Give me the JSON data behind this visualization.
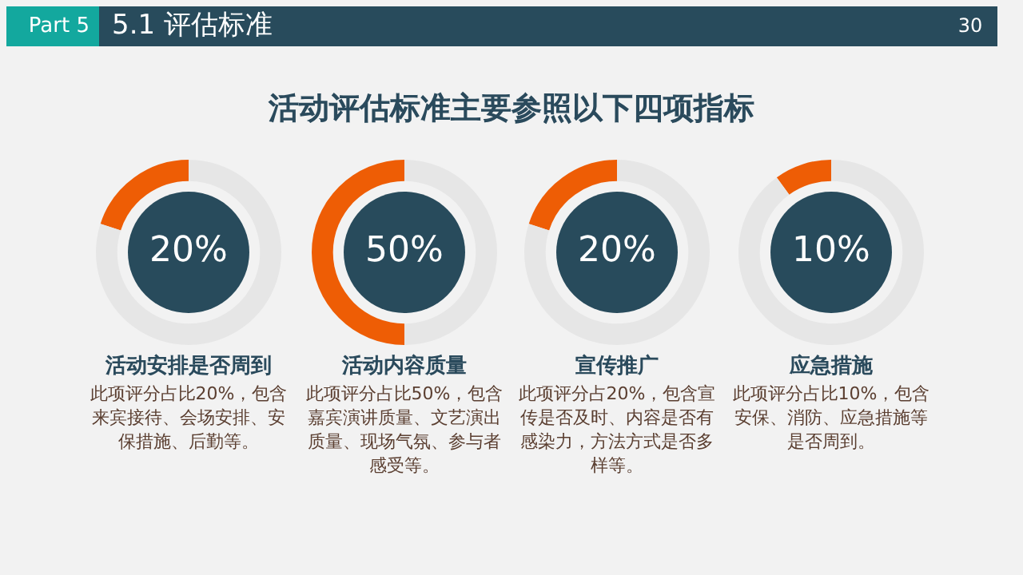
{
  "chart_data": [
    {
      "type": "other",
      "title": "活动评估标准主要参照以下四项指标",
      "annotations": [
        "Part 5",
        "5.1 评估标准",
        "30"
      ]
    },
    {
      "type": "donut",
      "title": "活动安排是否周到",
      "categories": [
        null,
        null
      ],
      "values": [
        20,
        80
      ],
      "colors": [
        "#ee5d05",
        "#e6e6e6"
      ],
      "value_labels": [
        "20%",
        null
      ],
      "annotations": [
        "此项评分占比20%，包含来宾接待、会场安排、安保措施、后勤等。"
      ]
    },
    {
      "type": "donut",
      "title": "活动内容质量",
      "categories": [
        null,
        null
      ],
      "values": [
        50,
        50
      ],
      "colors": [
        "#ee5d05",
        "#e6e6e6"
      ],
      "value_labels": [
        "50%",
        null
      ],
      "annotations": [
        "此项评分占比50%，包含嘉宾演讲质量、文艺演出质量、现场气氛、参与者感受等。"
      ]
    },
    {
      "type": "donut",
      "title": "宣传推广",
      "categories": [
        null,
        null
      ],
      "values": [
        20,
        80
      ],
      "colors": [
        "#ee5d05",
        "#e6e6e6"
      ],
      "value_labels": [
        "20%",
        null
      ],
      "annotations": [
        "此项评分占20%，包含宣传是否及时、内容是否有感染力，方法方式是否多样等。"
      ]
    },
    {
      "type": "donut",
      "title": "应急措施",
      "categories": [
        null,
        null
      ],
      "values": [
        10,
        90
      ],
      "colors": [
        "#ee5d05",
        "#e6e6e6"
      ],
      "value_labels": [
        "10%",
        null
      ],
      "annotations": [
        "此项评分占比10%，包含安保、消防、应急措施等是否周到。"
      ]
    }
  ]
}
